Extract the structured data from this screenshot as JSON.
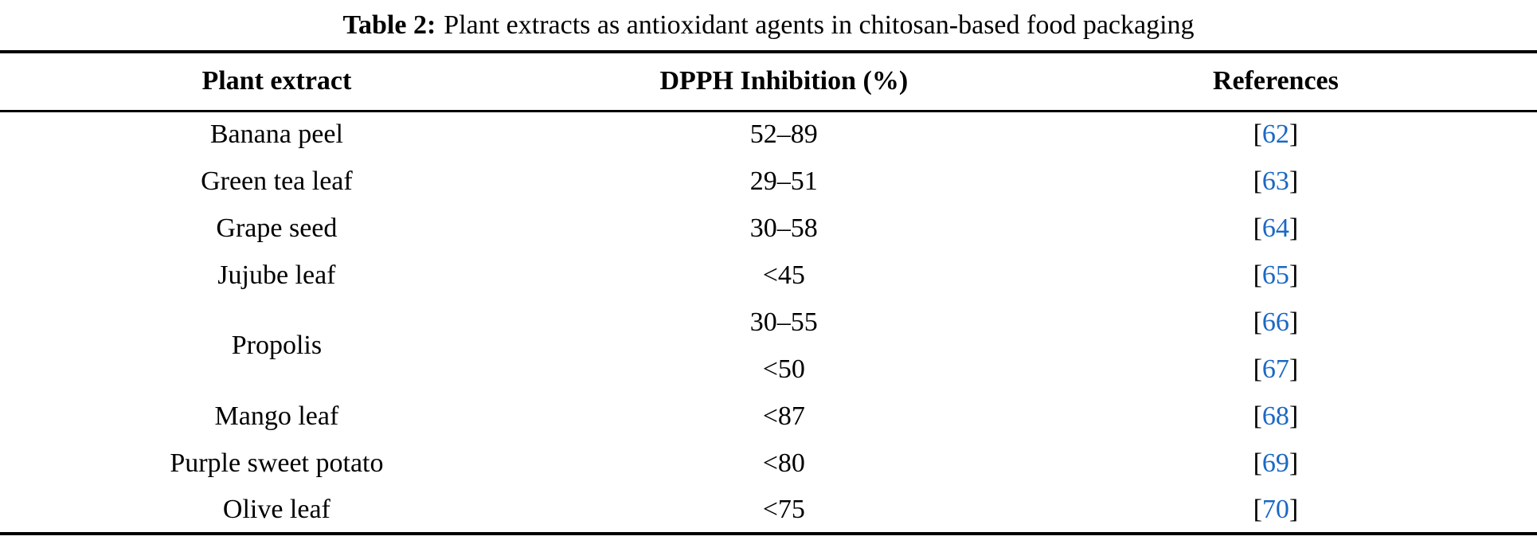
{
  "caption": {
    "label": "Table 2:",
    "text": "Plant extracts as antioxidant agents in chitosan-based food packaging"
  },
  "table": {
    "headers": [
      "Plant extract",
      "DPPH Inhibition (%)",
      "References"
    ],
    "ref_bracket_open": "[",
    "ref_bracket_close": "]",
    "rows": [
      {
        "extract": "Banana peel",
        "dpph": "52–89",
        "ref": "62"
      },
      {
        "extract": "Green tea leaf",
        "dpph": "29–51",
        "ref": "63"
      },
      {
        "extract": "Grape seed",
        "dpph": "30–58",
        "ref": "64"
      },
      {
        "extract": "Jujube leaf",
        "dpph": "<45",
        "ref": "65"
      },
      {
        "extract": "Propolis",
        "extract_rowspan": "2",
        "dpph": "30–55",
        "ref": "66"
      },
      {
        "dpph": "<50",
        "ref": "67"
      },
      {
        "extract": "Mango leaf",
        "dpph": "<87",
        "ref": "68"
      },
      {
        "extract": "Purple sweet potato",
        "dpph": "<80",
        "ref": "69"
      },
      {
        "extract": "Olive leaf",
        "dpph": "<75",
        "ref": "70"
      }
    ]
  },
  "colors": {
    "link_blue": "#1b68c4",
    "text_black": "#000000",
    "page_bg": "#ffffff"
  }
}
